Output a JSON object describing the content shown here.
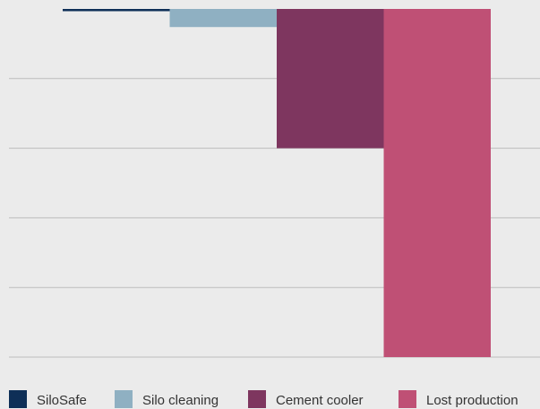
{
  "chart_data": {
    "type": "bar",
    "title": "",
    "xlabel": "",
    "ylabel": "",
    "categories": [
      "SiloSafe",
      "Silo cleaning",
      "Cement cooler",
      "Lost production"
    ],
    "values": [
      -0.15,
      -1.3,
      -10,
      -25
    ],
    "ylim": [
      -25,
      0
    ],
    "grid": true,
    "legend": {
      "position": "bottom",
      "entries": [
        "SiloSafe",
        "Silo cleaning",
        "Cement cooler",
        "Lost production"
      ]
    },
    "colors": [
      "#0e2f57",
      "#8fb0c2",
      "#7e365f",
      "#bf5075"
    ]
  }
}
